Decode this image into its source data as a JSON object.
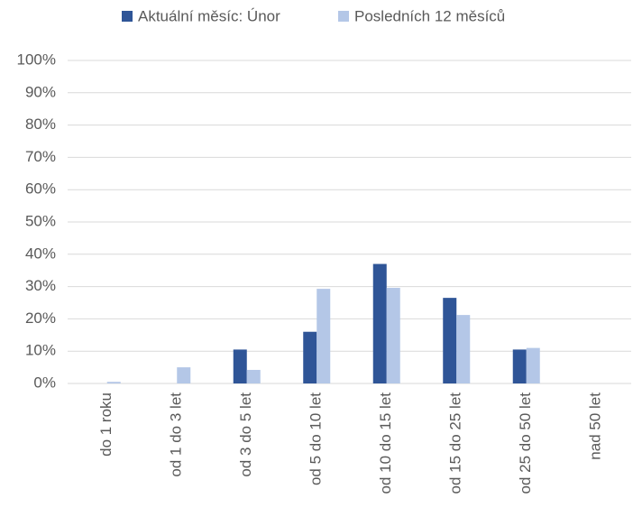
{
  "chart_data": {
    "type": "bar",
    "categories": [
      "do 1 roku",
      "od 1 do 3 let",
      "od 3 do 5 let",
      "od 5 do 10 let",
      "od 10 do 15 let",
      "od 15 do 25 let",
      "od 25 do 50 let",
      "nad 50 let"
    ],
    "series": [
      {
        "name": "Aktuální měsíc: Únor",
        "color": "#2f5597",
        "values": [
          0,
          0,
          10.5,
          16,
          37,
          26.5,
          10.5,
          0
        ]
      },
      {
        "name": "Posledních 12 měsíců",
        "color": "#b4c7e7",
        "values": [
          0.5,
          5,
          4.2,
          29.3,
          29.6,
          21.2,
          11,
          0
        ]
      }
    ],
    "ylim": [
      0,
      100
    ],
    "yticks": [
      {
        "value": 0,
        "label": "0%"
      },
      {
        "value": 10,
        "label": "10%"
      },
      {
        "value": 20,
        "label": "20%"
      },
      {
        "value": 30,
        "label": "30%"
      },
      {
        "value": 40,
        "label": "40%"
      },
      {
        "value": 50,
        "label": "50%"
      },
      {
        "value": 60,
        "label": "60%"
      },
      {
        "value": 70,
        "label": "70%"
      },
      {
        "value": 80,
        "label": "80%"
      },
      {
        "value": 90,
        "label": "90%"
      },
      {
        "value": 100,
        "label": "100%"
      }
    ],
    "grid": true,
    "legend": "top"
  }
}
